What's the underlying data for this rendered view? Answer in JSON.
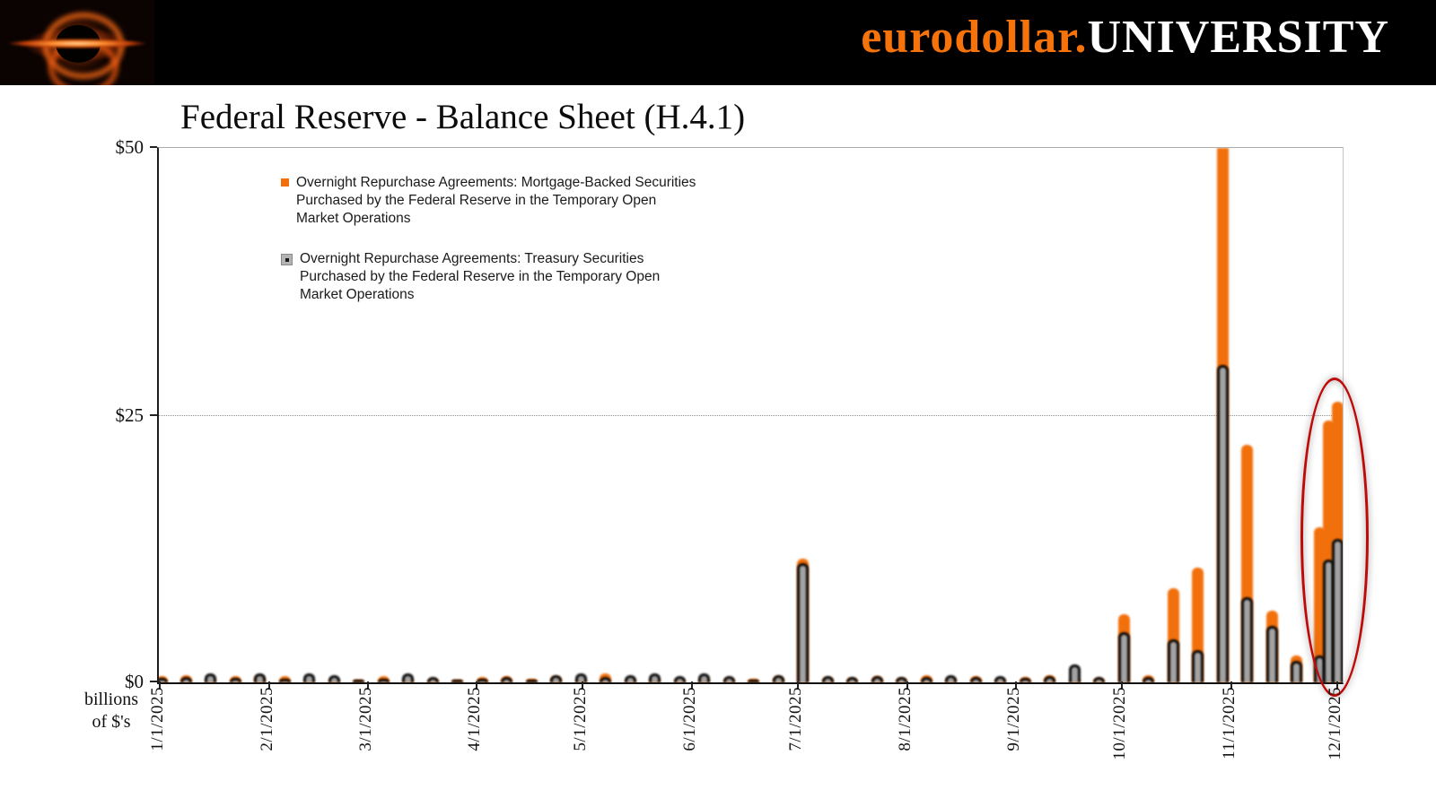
{
  "header": {
    "brand_orange": "eurodollar.",
    "brand_white": "UNIVERSITY"
  },
  "chart_data": {
    "type": "bar",
    "title": "Federal Reserve - Balance Sheet (H.4.1)",
    "y_unit_line1": "billions",
    "y_unit_line2": "of $'s",
    "ylim": [
      0,
      50
    ],
    "y_tick_labels": [
      "$50",
      "$25",
      "$0"
    ],
    "grid": "dotted horizontal line at $25, solid frame at $50",
    "legend_position": "inside top-left",
    "x_tick_labels": [
      "1/1/2025",
      "2/1/2025",
      "3/1/2025",
      "4/1/2025",
      "5/1/2025",
      "6/1/2025",
      "7/1/2025",
      "8/1/2025",
      "9/1/2025",
      "10/1/2025",
      "11/1/2025",
      "12/1/2025"
    ],
    "dates": [
      "1/1/2025",
      "1/8/2025",
      "1/15/2025",
      "1/22/2025",
      "1/29/2025",
      "2/5/2025",
      "2/12/2025",
      "2/19/2025",
      "2/26/2025",
      "3/5/2025",
      "3/12/2025",
      "3/19/2025",
      "3/26/2025",
      "4/2/2025",
      "4/9/2025",
      "4/16/2025",
      "4/23/2025",
      "4/30/2025",
      "5/7/2025",
      "5/14/2025",
      "5/21/2025",
      "5/28/2025",
      "6/4/2025",
      "6/11/2025",
      "6/18/2025",
      "6/25/2025",
      "7/2/2025",
      "7/9/2025",
      "7/16/2025",
      "7/23/2025",
      "7/30/2025",
      "8/6/2025",
      "8/13/2025",
      "8/20/2025",
      "8/27/2025",
      "9/3/2025",
      "9/10/2025",
      "9/17/2025",
      "9/24/2025",
      "10/1/2025",
      "10/8/2025",
      "10/15/2025",
      "10/22/2025",
      "10/29/2025",
      "11/5/2025",
      "11/12/2025",
      "11/19/2025",
      "11/26/2025",
      "12/3/2025",
      "12/10/2025"
    ],
    "series": [
      {
        "name": "Overnight Repurchase Agreements: Mortgage-Backed Securities Purchased by the Federal Reserve in the Temporary Open Market Operations",
        "color": "#f2700c",
        "values": [
          0.6,
          0.7,
          0.3,
          0.6,
          0.7,
          0.6,
          0.2,
          0.3,
          0.1,
          0.6,
          0.4,
          0.3,
          0.1,
          0.5,
          0.6,
          0.3,
          0.6,
          0.3,
          0.8,
          0.3,
          0.4,
          0.3,
          0.5,
          0.4,
          0.3,
          0.6,
          11.6,
          0.5,
          0.4,
          0.6,
          0.4,
          0.7,
          0.5,
          0.6,
          0.4,
          0.5,
          0.7,
          0.3,
          0.4,
          6.4,
          0.7,
          8.8,
          10.7,
          55.0,
          22.2,
          6.7,
          2.5,
          14.5,
          24.5,
          26.3
        ]
      },
      {
        "name": "Overnight Repurchase Agreements: Treasury Securities Purchased by the Federal Reserve in the Temporary Open Market Operations",
        "color": "#a3a3a3",
        "border_color": "#0a0a0a",
        "values": [
          0.4,
          0.5,
          0.8,
          0.4,
          0.8,
          0.3,
          0.8,
          0.7,
          0.2,
          0.3,
          0.8,
          0.5,
          0.2,
          0.3,
          0.5,
          0.2,
          0.7,
          0.8,
          0.5,
          0.7,
          0.8,
          0.6,
          0.8,
          0.6,
          0.1,
          0.7,
          11.2,
          0.6,
          0.5,
          0.6,
          0.5,
          0.5,
          0.7,
          0.5,
          0.6,
          0.4,
          0.6,
          1.7,
          0.5,
          4.7,
          0.5,
          4.0,
          3.0,
          29.7,
          8.0,
          5.3,
          2.0,
          2.5,
          11.5,
          13.4
        ]
      }
    ],
    "legend": {
      "items": [
        {
          "marker_color": "#f2700c",
          "lines": [
            "Overnight Repurchase Agreements: Mortgage-Backed Securities",
            "Purchased by the Federal Reserve in the Temporary Open",
            "Market Operations"
          ]
        },
        {
          "marker_color": "#a3a3a3",
          "lines": [
            "Overnight Repurchase Agreements: Treasury Securities",
            "Purchased by the Federal Reserve in the Temporary Open",
            "Market Operations"
          ]
        }
      ]
    },
    "annotation": {
      "shape": "ellipse",
      "color": "#bf0a0a",
      "around": "12/1/2025 bars"
    }
  }
}
